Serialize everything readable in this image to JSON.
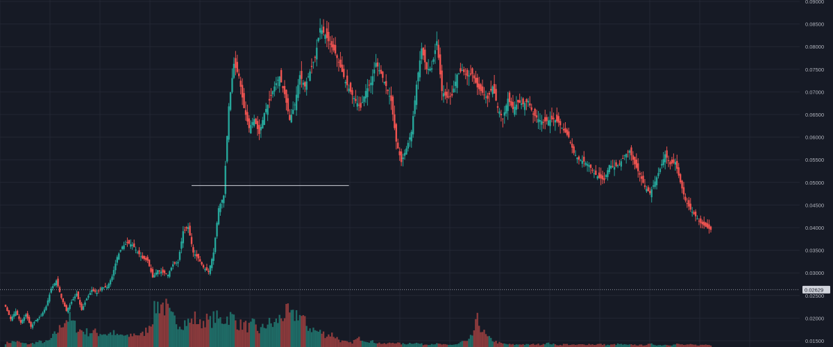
{
  "chart_data": {
    "type": "candlestick",
    "ylim": [
      0.015,
      0.09
    ],
    "y_ticks": [
      "0.01500",
      "0.02000",
      "0.02500",
      "0.03000",
      "0.03500",
      "0.04000",
      "0.04500",
      "0.05000",
      "0.05500",
      "0.06000",
      "0.06500",
      "0.07000",
      "0.07500",
      "0.08000",
      "0.08500",
      "0.09000"
    ],
    "grid": true,
    "colors": {
      "up": "#26a69a",
      "down": "#ef5350",
      "background": "#161a25",
      "grid": "#232734",
      "text": "#b2b5be",
      "horizontal_line": "#d1d4dc"
    },
    "current_price": {
      "value": 0.02629,
      "label": "0.02629"
    },
    "horizontal_line": {
      "value": 0.0493,
      "from_index": 110,
      "to_index": 203
    },
    "ohlc_path": [
      [
        0,
        0.0225
      ],
      [
        3,
        0.0198
      ],
      [
        6,
        0.0215
      ],
      [
        9,
        0.019
      ],
      [
        12,
        0.0208
      ],
      [
        15,
        0.0181
      ],
      [
        18,
        0.0196
      ],
      [
        21,
        0.0205
      ],
      [
        24,
        0.0226
      ],
      [
        27,
        0.0265
      ],
      [
        30,
        0.0283
      ],
      [
        33,
        0.0245
      ],
      [
        36,
        0.0216
      ],
      [
        39,
        0.0236
      ],
      [
        42,
        0.0254
      ],
      [
        45,
        0.0218
      ],
      [
        48,
        0.0243
      ],
      [
        51,
        0.0262
      ],
      [
        54,
        0.0256
      ],
      [
        57,
        0.0268
      ],
      [
        60,
        0.0268
      ],
      [
        63,
        0.0292
      ],
      [
        66,
        0.0335
      ],
      [
        69,
        0.0358
      ],
      [
        72,
        0.0366
      ],
      [
        75,
        0.0362
      ],
      [
        78,
        0.0346
      ],
      [
        81,
        0.0332
      ],
      [
        84,
        0.0327
      ],
      [
        87,
        0.029
      ],
      [
        90,
        0.0306
      ],
      [
        93,
        0.0301
      ],
      [
        96,
        0.0296
      ],
      [
        99,
        0.0319
      ],
      [
        102,
        0.0324
      ],
      [
        105,
        0.0392
      ],
      [
        108,
        0.0401
      ],
      [
        111,
        0.0345
      ],
      [
        114,
        0.0332
      ],
      [
        117,
        0.0312
      ],
      [
        120,
        0.0302
      ],
      [
        123,
        0.0345
      ],
      [
        126,
        0.0443
      ],
      [
        129,
        0.0471
      ],
      [
        132,
        0.0668
      ],
      [
        135,
        0.0762
      ],
      [
        138,
        0.0735
      ],
      [
        141,
        0.0664
      ],
      [
        144,
        0.062
      ],
      [
        147,
        0.064
      ],
      [
        150,
        0.0607
      ],
      [
        153,
        0.0653
      ],
      [
        156,
        0.0681
      ],
      [
        159,
        0.0712
      ],
      [
        162,
        0.0734
      ],
      [
        165,
        0.0695
      ],
      [
        168,
        0.0638
      ],
      [
        171,
        0.0672
      ],
      [
        174,
        0.0737
      ],
      [
        177,
        0.0712
      ],
      [
        180,
        0.0745
      ],
      [
        183,
        0.0776
      ],
      [
        186,
        0.0841
      ],
      [
        189,
        0.0826
      ],
      [
        192,
        0.0805
      ],
      [
        195,
        0.0785
      ],
      [
        198,
        0.0755
      ],
      [
        201,
        0.0722
      ],
      [
        204,
        0.07
      ],
      [
        207,
        0.068
      ],
      [
        210,
        0.0665
      ],
      [
        213,
        0.0702
      ],
      [
        216,
        0.072
      ],
      [
        219,
        0.0764
      ],
      [
        222,
        0.074
      ],
      [
        225,
        0.0713
      ],
      [
        228,
        0.068
      ],
      [
        231,
        0.059
      ],
      [
        234,
        0.0545
      ],
      [
        237,
        0.0575
      ],
      [
        240,
        0.0612
      ],
      [
        243,
        0.0716
      ],
      [
        246,
        0.0796
      ],
      [
        249,
        0.075
      ],
      [
        252,
        0.0752
      ],
      [
        255,
        0.0812
      ],
      [
        258,
        0.0702
      ],
      [
        261,
        0.0687
      ],
      [
        264,
        0.0692
      ],
      [
        267,
        0.0738
      ],
      [
        270,
        0.0748
      ],
      [
        273,
        0.0735
      ],
      [
        276,
        0.074
      ],
      [
        279,
        0.071
      ],
      [
        282,
        0.0698
      ],
      [
        285,
        0.0685
      ],
      [
        288,
        0.0712
      ],
      [
        291,
        0.0665
      ],
      [
        294,
        0.064
      ],
      [
        297,
        0.0685
      ],
      [
        300,
        0.0662
      ],
      [
        303,
        0.0677
      ],
      [
        306,
        0.0673
      ],
      [
        309,
        0.068
      ],
      [
        312,
        0.065
      ],
      [
        315,
        0.064
      ],
      [
        318,
        0.0633
      ],
      [
        321,
        0.0637
      ],
      [
        324,
        0.064
      ],
      [
        327,
        0.0632
      ],
      [
        330,
        0.0615
      ],
      [
        333,
        0.06
      ],
      [
        336,
        0.0565
      ],
      [
        339,
        0.055
      ],
      [
        342,
        0.0546
      ],
      [
        345,
        0.0538
      ],
      [
        348,
        0.052
      ],
      [
        351,
        0.051
      ],
      [
        354,
        0.0505
      ],
      [
        357,
        0.0538
      ],
      [
        360,
        0.0534
      ],
      [
        363,
        0.054
      ],
      [
        366,
        0.056
      ],
      [
        369,
        0.057
      ],
      [
        372,
        0.054
      ],
      [
        375,
        0.0517
      ],
      [
        378,
        0.049
      ],
      [
        381,
        0.0476
      ],
      [
        384,
        0.0502
      ],
      [
        387,
        0.053
      ],
      [
        390,
        0.0562
      ],
      [
        393,
        0.054
      ],
      [
        396,
        0.0545
      ],
      [
        399,
        0.05
      ],
      [
        402,
        0.046
      ],
      [
        405,
        0.044
      ],
      [
        408,
        0.0425
      ],
      [
        411,
        0.041
      ],
      [
        414,
        0.0402
      ],
      [
        417,
        0.0395
      ]
    ],
    "volume_heights": [
      0.08,
      0.1,
      0.12,
      0.09,
      0.07,
      0.06,
      0.09,
      0.11,
      0.1,
      0.13,
      0.25,
      0.35,
      0.55,
      0.6,
      0.47,
      0.36,
      0.33,
      0.3,
      0.32,
      0.28,
      0.29,
      0.26,
      0.3,
      0.22,
      0.25,
      0.2,
      0.26,
      0.27,
      0.24,
      0.35,
      0.55,
      0.85,
      0.9,
      0.8,
      0.6,
      0.55,
      0.48,
      0.52,
      0.5,
      0.6,
      0.46,
      0.58,
      0.5,
      0.62,
      0.55,
      0.57,
      0.63,
      0.59,
      0.45,
      0.46,
      0.4,
      0.47,
      0.32,
      0.4,
      0.5,
      0.45,
      0.55,
      0.65,
      0.7,
      0.6,
      0.72,
      0.6,
      0.42,
      0.38,
      0.32,
      0.3,
      0.24,
      0.27,
      0.2,
      0.12,
      0.1,
      0.08,
      0.15,
      0.18,
      0.14,
      0.12,
      0.1,
      0.08,
      0.06,
      0.08,
      0.1,
      0.07,
      0.06,
      0.08,
      0.09,
      0.07,
      0.05,
      0.06,
      0.07,
      0.06,
      0.05,
      0.04,
      0.05,
      0.06,
      0.12,
      0.1,
      0.25,
      0.55,
      0.35,
      0.2,
      0.15,
      0.1,
      0.07,
      0.06,
      0.05,
      0.05,
      0.06,
      0.05,
      0.05,
      0.06,
      0.05,
      0.08,
      0.07,
      0.05,
      0.04,
      0.06,
      0.05,
      0.04,
      0.05,
      0.05,
      0.06,
      0.05,
      0.06,
      0.05,
      0.04,
      0.05,
      0.06,
      0.05,
      0.04,
      0.05,
      0.04,
      0.04,
      0.05,
      0.06,
      0.04,
      0.04,
      0.05,
      0.04,
      0.06,
      0.05,
      0.04,
      0.05,
      0.04,
      0.04,
      0.05,
      0.04
    ]
  }
}
